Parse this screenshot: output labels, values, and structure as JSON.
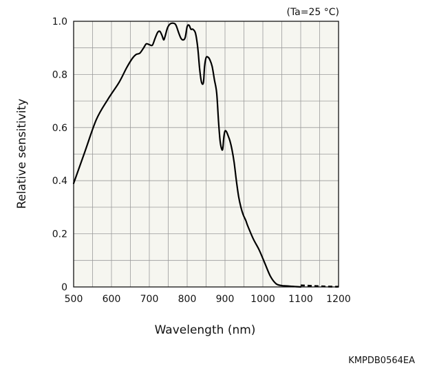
{
  "chart_data": {
    "type": "line",
    "title": "",
    "condition": "(Ta=25 °C)",
    "xlabel": "Wavelength (nm)",
    "ylabel": "Relative sensitivity",
    "xlim": [
      500,
      1200
    ],
    "ylim": [
      0,
      1.0
    ],
    "grid": true,
    "x_ticks": [
      500,
      600,
      700,
      800,
      900,
      1000,
      1100,
      1200
    ],
    "x_tick_labels": [
      "500",
      "600",
      "700",
      "800",
      "900",
      "1000",
      "1100",
      "1200"
    ],
    "y_ticks": [
      0,
      0.2,
      0.4,
      0.6,
      0.8,
      1.0
    ],
    "y_tick_labels": [
      "0",
      "0.2",
      "0.4",
      "0.6",
      "0.8",
      "1.0"
    ],
    "series": [
      {
        "style": "solid",
        "x": [
          500,
          530,
          560,
          590,
          620,
          640,
          655,
          665,
          675,
          685,
          692,
          700,
          708,
          715,
          722,
          728,
          734,
          738,
          742,
          748,
          755,
          762,
          768,
          772,
          778,
          784,
          790,
          795,
          800,
          805,
          810,
          815,
          822,
          828,
          833,
          838,
          843,
          846,
          850,
          855,
          860,
          866,
          872,
          878,
          883,
          887,
          891,
          894,
          897,
          900,
          904,
          908,
          913,
          918,
          924,
          930,
          936,
          942,
          948,
          955,
          960,
          975,
          990,
          1005,
          1020,
          1035,
          1050,
          1060,
          1070,
          1080,
          1090,
          1100
        ],
        "y": [
          0.39,
          0.51,
          0.63,
          0.705,
          0.77,
          0.825,
          0.86,
          0.875,
          0.88,
          0.9,
          0.915,
          0.912,
          0.91,
          0.935,
          0.958,
          0.962,
          0.945,
          0.93,
          0.945,
          0.975,
          0.99,
          0.993,
          0.99,
          0.98,
          0.955,
          0.935,
          0.93,
          0.94,
          0.98,
          0.985,
          0.97,
          0.97,
          0.955,
          0.9,
          0.82,
          0.77,
          0.77,
          0.83,
          0.863,
          0.865,
          0.855,
          0.83,
          0.78,
          0.73,
          0.62,
          0.55,
          0.52,
          0.52,
          0.565,
          0.587,
          0.584,
          0.57,
          0.55,
          0.52,
          0.47,
          0.4,
          0.34,
          0.3,
          0.272,
          0.25,
          0.23,
          0.18,
          0.14,
          0.09,
          0.04,
          0.012,
          0.005,
          0.004,
          0.003,
          0.002,
          0.001,
          0.0
        ]
      },
      {
        "style": "dashed",
        "x": [
          1100,
          1130,
          1160,
          1190,
          1200
        ],
        "y": [
          0.006,
          0.004,
          0.002,
          0.001,
          0.001
        ]
      }
    ]
  },
  "footer": {
    "code": "KMPDB0564EA"
  }
}
